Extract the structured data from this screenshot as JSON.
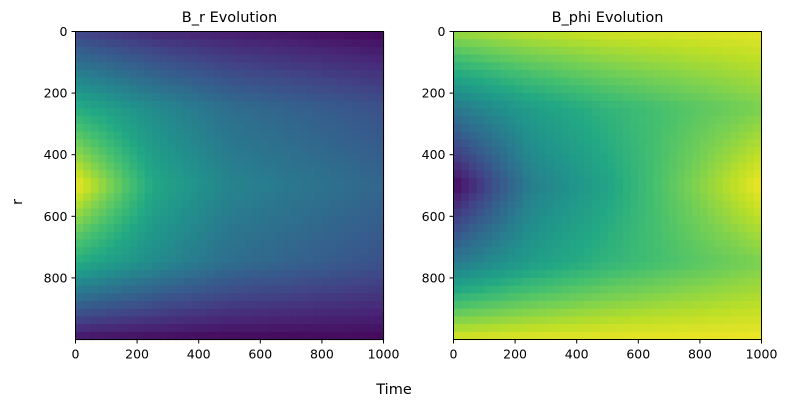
{
  "chart_data": [
    {
      "type": "heatmap",
      "title": "B_r Evolution",
      "xlabel": "Time",
      "ylabel": "r",
      "xlim": [
        0,
        1000
      ],
      "ylim": [
        1000,
        0
      ],
      "xticks": [
        0,
        200,
        400,
        600,
        800,
        1000
      ],
      "yticks": [
        0,
        200,
        400,
        600,
        800
      ],
      "colormap": "viridis",
      "pattern": "peak at r=500, t=0; decreasing toward r edges and with time",
      "samples": {
        "t": [
          0,
          250,
          500,
          1000
        ],
        "r": [
          0,
          250,
          500,
          750,
          1000
        ],
        "values": [
          [
            0.2,
            0.12,
            0.08,
            0.02
          ],
          [
            0.62,
            0.48,
            0.36,
            0.25
          ],
          [
            0.98,
            0.6,
            0.45,
            0.33
          ],
          [
            0.62,
            0.48,
            0.36,
            0.25
          ],
          [
            0.05,
            0.03,
            0.02,
            0.02
          ]
        ]
      }
    },
    {
      "type": "heatmap",
      "title": "B_phi Evolution",
      "xlabel": "Time",
      "ylabel": "r",
      "xlim": [
        0,
        1000
      ],
      "ylim": [
        1000,
        0
      ],
      "xticks": [
        0,
        200,
        400,
        600,
        800,
        1000
      ],
      "yticks": [
        0,
        200,
        400,
        600,
        800
      ],
      "colormap": "viridis",
      "pattern": "minimum at r=500, t=0; increasing toward r edges and with time",
      "samples": {
        "t": [
          0,
          250,
          500,
          1000
        ],
        "r": [
          0,
          250,
          500,
          750,
          1000
        ],
        "values": [
          [
            0.85,
            0.9,
            0.93,
            0.96
          ],
          [
            0.4,
            0.55,
            0.65,
            0.8
          ],
          [
            0.02,
            0.42,
            0.58,
            0.98
          ],
          [
            0.4,
            0.55,
            0.65,
            0.8
          ],
          [
            0.95,
            0.96,
            0.97,
            0.98
          ]
        ]
      }
    }
  ],
  "figure": {
    "xlabel": "Time",
    "ylabel": "r"
  }
}
